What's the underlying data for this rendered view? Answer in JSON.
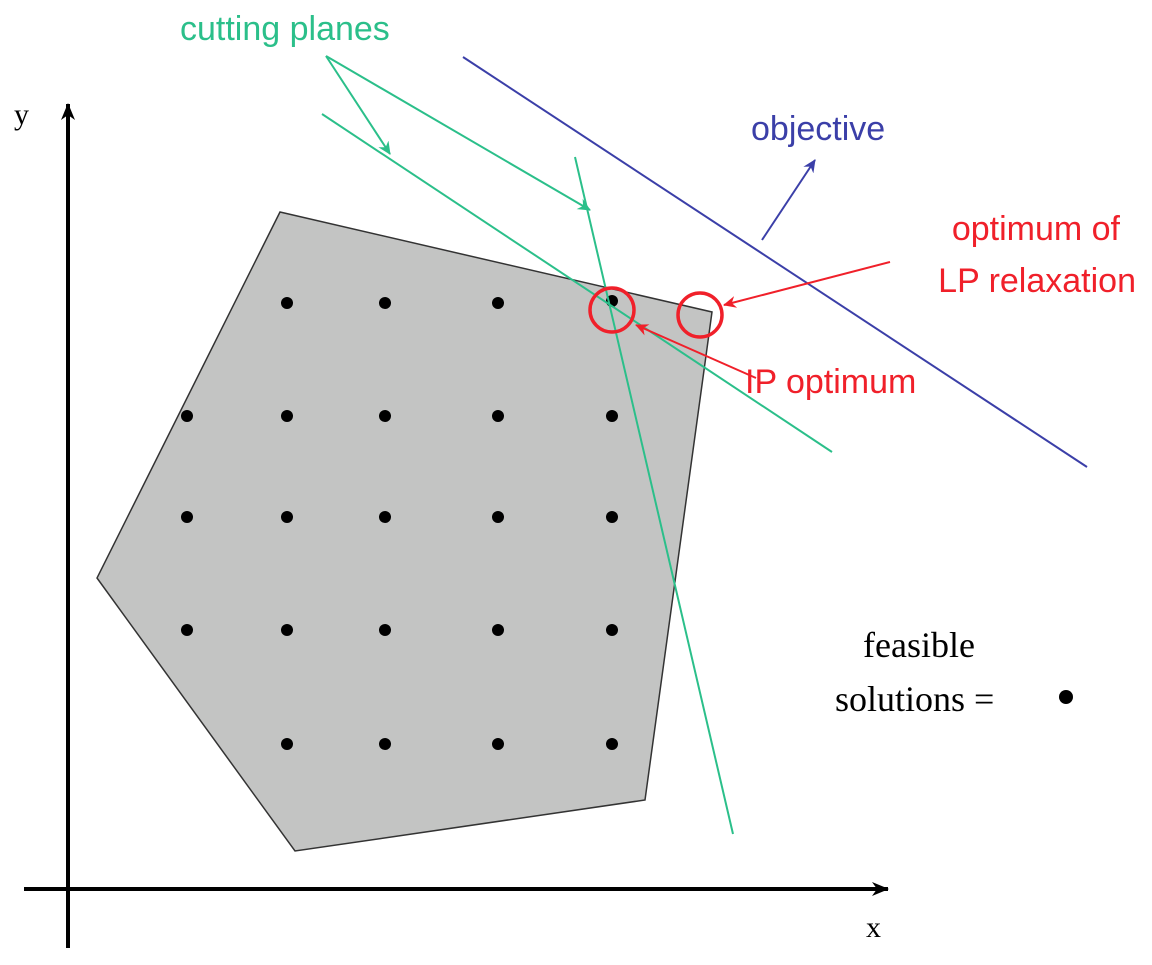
{
  "axes": {
    "x_label": "x",
    "y_label": "y"
  },
  "labels": {
    "cutting_planes": "cutting planes",
    "objective": "objective",
    "lp_optimum_line1": "optimum of",
    "lp_optimum_line2": "LP relaxation",
    "ip_optimum": "IP optimum",
    "legend_line1": "feasible",
    "legend_line2": "solutions ="
  },
  "colors": {
    "cutting_plane": "#2bbf8a",
    "objective": "#3b3fa8",
    "optimum": "#f0202a",
    "polygon_fill": "#c3c4c3",
    "polygon_stroke": "#333333",
    "axis": "#000000",
    "point": "#000000"
  },
  "feasible_points": {
    "description_icon": "dot-icon"
  }
}
